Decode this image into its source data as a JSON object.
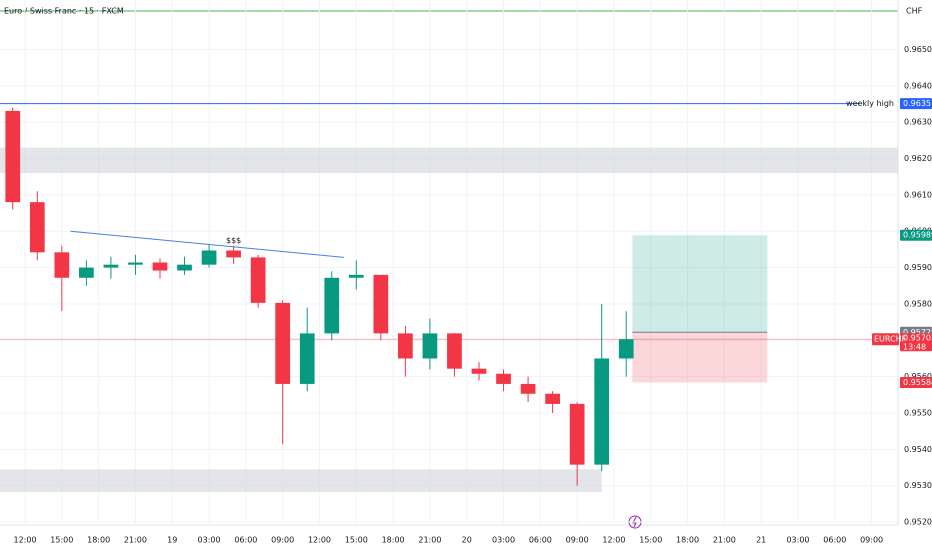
{
  "chart_data": {
    "type": "candlestick",
    "title": "Euro / Swiss Franc · 15 · FXCM",
    "currency": "CHF",
    "xlim": [
      9.96,
      83.15
    ],
    "xticks": [
      {
        "value": 12,
        "label": "12:00"
      },
      {
        "value": 15,
        "label": "15:00"
      },
      {
        "value": 18,
        "label": "18:00"
      },
      {
        "value": 21,
        "label": "21:00"
      },
      {
        "value": 24,
        "label": "19"
      },
      {
        "value": 27,
        "label": "03:00"
      },
      {
        "value": 30,
        "label": "06:00"
      },
      {
        "value": 33,
        "label": "09:00"
      },
      {
        "value": 36,
        "label": "12:00"
      },
      {
        "value": 39,
        "label": "15:00"
      },
      {
        "value": 42,
        "label": "18:00"
      },
      {
        "value": 45,
        "label": "21:00"
      },
      {
        "value": 48,
        "label": "20"
      },
      {
        "value": 51,
        "label": "03:00"
      },
      {
        "value": 54,
        "label": "06:00"
      },
      {
        "value": 57,
        "label": "09:00"
      },
      {
        "value": 60,
        "label": "12:00"
      },
      {
        "value": 63,
        "label": "15:00"
      },
      {
        "value": 66,
        "label": "18:00"
      },
      {
        "value": 69,
        "label": "21:00"
      },
      {
        "value": 72,
        "label": "21"
      },
      {
        "value": 75,
        "label": "03:00"
      },
      {
        "value": 78,
        "label": "06:00"
      },
      {
        "value": 81,
        "label": "09:00"
      }
    ],
    "ylim": [
      0.95192,
      0.96636
    ],
    "yticks": [
      {
        "value": 0.952,
        "label": "0.95200"
      },
      {
        "value": 0.953,
        "label": "0.95300"
      },
      {
        "value": 0.954,
        "label": "0.95400"
      },
      {
        "value": 0.955,
        "label": "0.95500"
      },
      {
        "value": 0.956,
        "label": "0.95600"
      },
      {
        "value": 0.957,
        "label": "0.95700"
      },
      {
        "value": 0.958,
        "label": "0.95800"
      },
      {
        "value": 0.959,
        "label": "0.95900"
      },
      {
        "value": 0.96,
        "label": "0.96000"
      },
      {
        "value": 0.961,
        "label": "0.96100"
      },
      {
        "value": 0.962,
        "label": "0.96200"
      },
      {
        "value": 0.963,
        "label": "0.96300"
      },
      {
        "value": 0.964,
        "label": "0.96400"
      },
      {
        "value": 0.965,
        "label": "0.96500"
      }
    ],
    "up_color": "#089981",
    "down_color": "#f23645",
    "x": [
      11,
      13,
      15,
      17,
      19,
      21,
      23,
      25,
      27,
      29,
      31,
      33,
      35,
      37,
      39,
      41,
      43,
      45,
      47,
      49,
      51,
      53,
      55,
      57,
      59,
      61
    ],
    "open": [
      0.96331,
      0.9608,
      0.95942,
      0.95872,
      0.959,
      0.95908,
      0.95914,
      0.95892,
      0.95908,
      0.95947,
      0.95928,
      0.95803,
      0.9558,
      0.95719,
      0.95872,
      0.9588,
      0.95719,
      0.9565,
      0.95719,
      0.95622,
      0.95608,
      0.9558,
      0.95553,
      0.95525,
      0.95358,
      0.9565
    ],
    "high": [
      0.9634,
      0.9611,
      0.9596,
      0.9592,
      0.9593,
      0.95935,
      0.95925,
      0.9593,
      0.95965,
      0.9596,
      0.95935,
      0.9581,
      0.9579,
      0.9589,
      0.9592,
      0.9588,
      0.9574,
      0.9576,
      0.9572,
      0.9564,
      0.9562,
      0.956,
      0.9556,
      0.9553,
      0.958,
      0.9578
    ],
    "low": [
      0.9606,
      0.9592,
      0.9578,
      0.9585,
      0.9587,
      0.9588,
      0.9587,
      0.9588,
      0.959,
      0.9591,
      0.9579,
      0.95414,
      0.9556,
      0.957,
      0.9584,
      0.957,
      0.956,
      0.9562,
      0.956,
      0.9559,
      0.9556,
      0.9553,
      0.955,
      0.953,
      0.9534,
      0.956
    ],
    "close": [
      0.9608,
      0.95942,
      0.95872,
      0.959,
      0.95908,
      0.95914,
      0.95892,
      0.95908,
      0.95947,
      0.95928,
      0.95803,
      0.9558,
      0.95719,
      0.95872,
      0.9588,
      0.95719,
      0.9565,
      0.95719,
      0.95622,
      0.95608,
      0.9558,
      0.95553,
      0.95525,
      0.95358,
      0.9565,
      0.95703
    ],
    "levels": [
      {
        "name": "weekly high",
        "value": 0.96351,
        "color": "#2962ff"
      }
    ],
    "zones": [
      {
        "x": [
          9.96,
          83.15
        ],
        "y": [
          0.9616,
          0.9623
        ]
      },
      {
        "x": [
          9.96,
          59
        ],
        "y": [
          0.95283,
          0.95345
        ]
      }
    ],
    "trendline": {
      "x": [
        15.7,
        38
      ],
      "y": [
        0.96,
        0.95928
      ],
      "label": "$$$",
      "color": "#4a7fe0"
    },
    "position": {
      "x": [
        61.5,
        72.5
      ],
      "entry": 0.95722,
      "target": 0.95989,
      "stop": 0.95584
    },
    "symbol": "EURCHF",
    "last_price": 0.95703,
    "countdown": "13:48"
  }
}
